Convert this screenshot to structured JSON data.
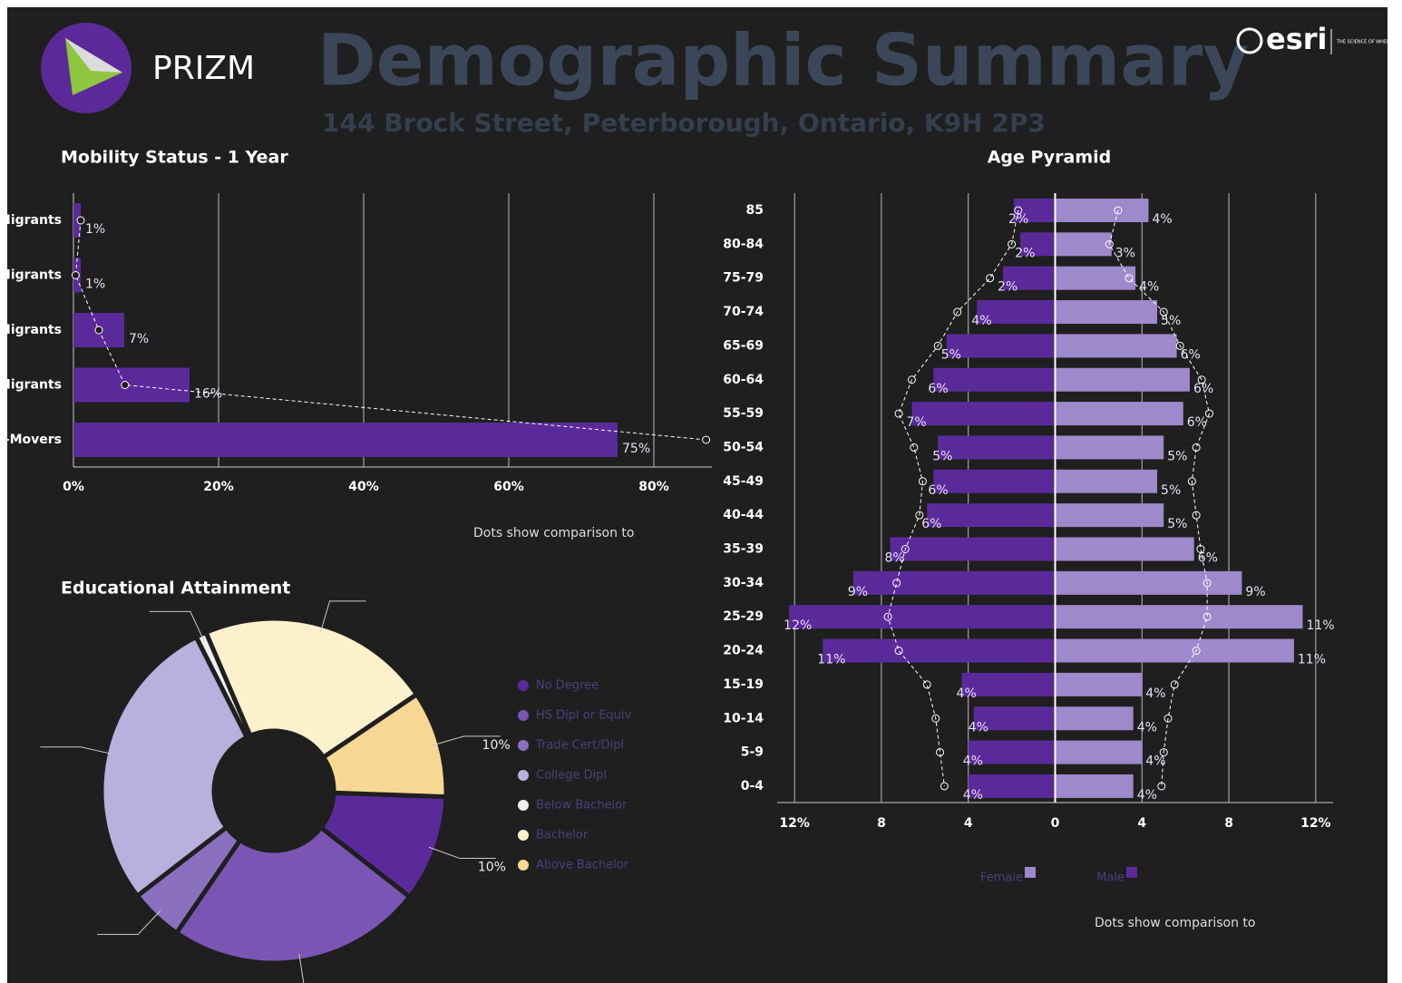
{
  "header": {
    "brand": "PRIZM",
    "title": "Demographic Summary",
    "subtitle": "144 Brock Street, Peterborough, Ontario, K9H 2P3",
    "logo_text": "esri",
    "tagline": "THE SCIENCE OF WHERE"
  },
  "chart_data": [
    {
      "type": "bar",
      "orientation": "horizontal",
      "title": "Mobility Status - 1 Year",
      "categories": [
        "Migrants",
        "Migrants",
        "Migrants",
        "Migrants",
        "-Movers"
      ],
      "values": [
        1,
        1,
        7,
        16,
        75
      ],
      "value_labels": [
        "1%",
        "1%",
        "7%",
        "16%",
        "75%"
      ],
      "comparison_values": [
        1,
        0.3,
        3.5,
        7.1,
        87.2
      ],
      "color": "#5b2a9a",
      "xlim": [
        0,
        88
      ],
      "xticks": [
        {
          "value": 0,
          "label": "0%"
        },
        {
          "value": 20,
          "label": "20%"
        },
        {
          "value": 40,
          "label": "40%"
        },
        {
          "value": 60,
          "label": "60%"
        },
        {
          "value": 80,
          "label": "80%"
        }
      ],
      "grid": true,
      "note": "Dots show comparison to"
    },
    {
      "type": "pyramid",
      "title": "Age Pyramid",
      "categories": [
        "85",
        "80-84",
        "75-79",
        "70-74",
        "65-69",
        "60-64",
        "55-59",
        "50-54",
        "45-49",
        "40-44",
        "35-39",
        "30-34",
        "25-29",
        "20-24",
        "15-19",
        "10-14",
        "5-9",
        "0-4"
      ],
      "series": [
        {
          "name": "Female",
          "color": "#5b2a9a",
          "values": [
            1.9,
            1.6,
            2.4,
            3.6,
            5.0,
            5.6,
            6.6,
            5.4,
            5.6,
            5.9,
            7.6,
            9.3,
            12.25,
            10.7,
            4.3,
            3.75,
            4.0,
            4.0
          ],
          "value_labels": [
            "2%",
            "2%",
            "2%",
            "4%",
            "5%",
            "6%",
            "7%",
            "5%",
            "6%",
            "6%",
            "8%",
            "9%",
            "12%",
            "11%",
            "4%",
            "4%",
            "4%",
            "4%"
          ],
          "comparison_values": [
            1.7,
            2.0,
            3.0,
            4.5,
            5.4,
            6.6,
            7.2,
            6.5,
            6.1,
            6.25,
            6.9,
            7.3,
            7.7,
            7.2,
            5.9,
            5.5,
            5.3,
            5.1
          ]
        },
        {
          "name": "Male",
          "color": "#9d89cb",
          "values": [
            4.3,
            2.6,
            3.7,
            4.7,
            5.6,
            6.2,
            5.9,
            5.0,
            4.7,
            5.0,
            6.4,
            8.6,
            11.4,
            11.0,
            4.0,
            3.6,
            4.0,
            3.6
          ],
          "value_labels": [
            "4%",
            "3%",
            "4%",
            "5%",
            "6%",
            "6%",
            "6%",
            "5%",
            "5%",
            "5%",
            "6%",
            "9%",
            "11%",
            "11%",
            "4%",
            "4%",
            "4%",
            "4%"
          ],
          "comparison_values": [
            2.9,
            2.5,
            3.4,
            5.0,
            5.75,
            6.75,
            7.1,
            6.5,
            6.3,
            6.5,
            6.7,
            7.0,
            7.0,
            6.5,
            5.5,
            5.2,
            5.0,
            4.9
          ]
        }
      ],
      "xlim": [
        -12.8,
        12.8
      ],
      "xticks": [
        {
          "value": -12,
          "label": "12%"
        },
        {
          "value": -8,
          "label": "8"
        },
        {
          "value": -4,
          "label": "4"
        },
        0,
        4,
        8,
        {
          "value": 12,
          "label": "12%"
        }
      ],
      "grid": true,
      "note": "Dots show comparison to"
    },
    {
      "type": "donut",
      "title": "Educational Attainment",
      "categories": [
        "No Degree",
        "HS Dipl or Equiv",
        "Trade Cert/Dipl",
        "College Dipl",
        "Below Bachelor",
        "Bachelor",
        "Above Bachelor"
      ],
      "values": [
        10,
        24,
        5,
        28,
        1,
        22,
        10
      ],
      "value_labels": [
        "10%",
        null,
        null,
        null,
        null,
        null,
        "10%"
      ],
      "colors": [
        "#5b2a9a",
        "#7a55b3",
        "#8a70bf",
        "#bab0de",
        "#eeeeee",
        "#fdf0cd",
        "#f6d894"
      ]
    }
  ]
}
